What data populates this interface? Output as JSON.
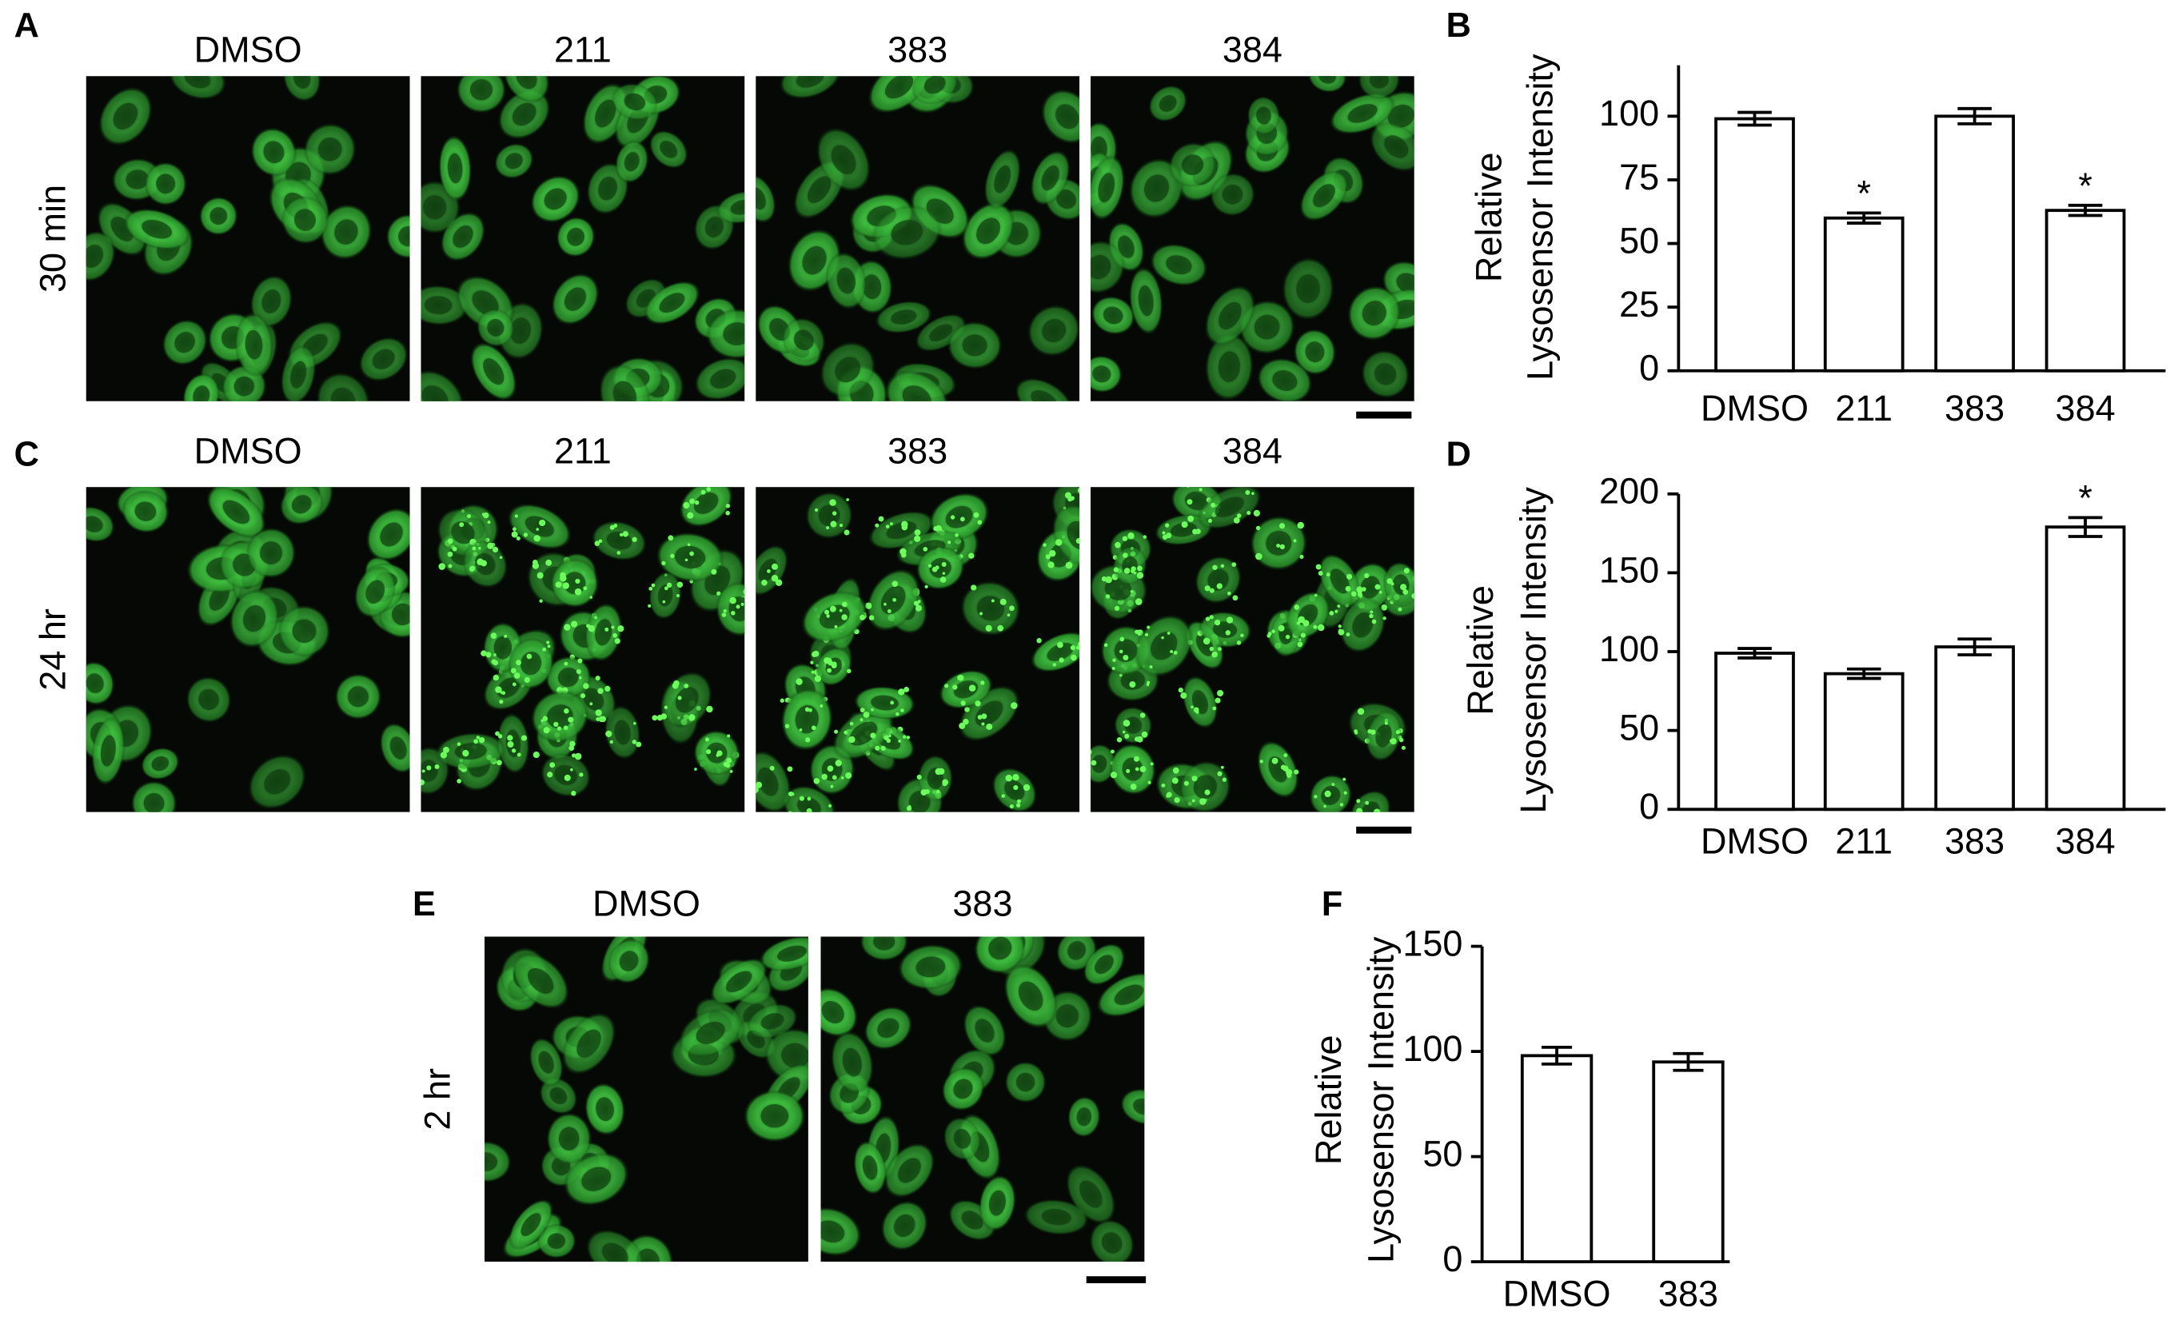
{
  "image_panels": [
    {
      "letter": "A",
      "row_label": "30 min",
      "columns": [
        "DMSO",
        "211",
        "383",
        "384"
      ]
    },
    {
      "letter": "C",
      "row_label": "24 hr",
      "columns": [
        "DMSO",
        "211",
        "383",
        "384"
      ]
    },
    {
      "letter": "E",
      "row_label": "2 hr",
      "columns": [
        "DMSO",
        "383"
      ]
    }
  ],
  "chart_data": [
    {
      "type": "bar",
      "letter": "B",
      "ylabel": [
        "Relative",
        "Lysosensor Intensity"
      ],
      "categories": [
        "DMSO",
        "211",
        "383",
        "384"
      ],
      "values": [
        99,
        60,
        100,
        63
      ],
      "errors": [
        2.5,
        2,
        3,
        2
      ],
      "significance": [
        null,
        "*",
        null,
        "*"
      ],
      "color": "#ffffff",
      "ylim": [
        0,
        120
      ],
      "yticks": [
        0,
        25,
        50,
        75,
        100
      ]
    },
    {
      "type": "bar",
      "letter": "D",
      "ylabel": [
        "Relative",
        "Lysosensor Intensity"
      ],
      "categories": [
        "DMSO",
        "211",
        "383",
        "384"
      ],
      "values": [
        99,
        86,
        103,
        179
      ],
      "errors": [
        3,
        3,
        5,
        6
      ],
      "significance": [
        null,
        null,
        null,
        "*"
      ],
      "color": "#ffffff",
      "ylim": [
        0,
        200
      ],
      "yticks": [
        0,
        50,
        100,
        150,
        200
      ]
    },
    {
      "type": "bar",
      "letter": "F",
      "ylabel": [
        "Relative",
        "Lysosensor Intensity"
      ],
      "categories": [
        "DMSO",
        "383"
      ],
      "values": [
        98,
        95
      ],
      "errors": [
        4,
        4
      ],
      "significance": [
        null,
        null
      ],
      "color": "#ffffff",
      "ylim": [
        0,
        150
      ],
      "yticks": [
        0,
        50,
        100,
        150
      ]
    }
  ]
}
